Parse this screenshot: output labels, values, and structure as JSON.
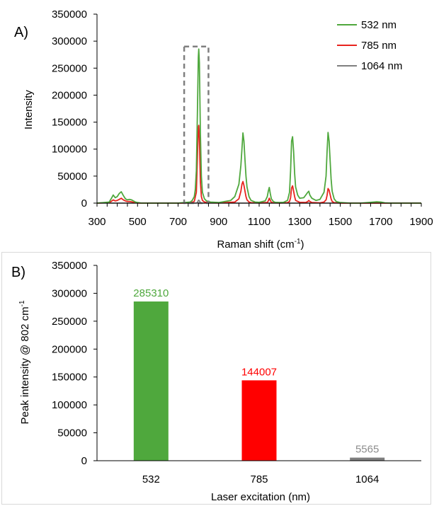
{
  "chart_data": [
    {
      "type": "line",
      "panel_label": "A)",
      "xlabel": "Raman shift (cm",
      "xlabel_sup": "-1",
      "xlabel_suffix": ")",
      "ylabel": "Intensity",
      "xlim": [
        300,
        1900
      ],
      "ylim": [
        0,
        350000
      ],
      "x_ticks": [
        300,
        500,
        700,
        900,
        1100,
        1300,
        1500,
        1700,
        1900
      ],
      "y_ticks": [
        0,
        50000,
        100000,
        150000,
        200000,
        250000,
        300000,
        350000
      ],
      "grid": false,
      "legend_position": "top-right",
      "highlight_box_x": [
        730,
        850
      ],
      "highlight_box_y": [
        0,
        290000
      ],
      "series": [
        {
          "name": "532 nm",
          "color": "#4fa83d",
          "x": [
            300,
            360,
            370,
            380,
            390,
            400,
            410,
            420,
            430,
            440,
            450,
            460,
            470,
            480,
            490,
            500,
            520,
            700,
            760,
            770,
            780,
            785,
            790,
            795,
            800,
            802,
            805,
            810,
            815,
            820,
            830,
            840,
            860,
            900,
            960,
            980,
            1000,
            1010,
            1015,
            1020,
            1025,
            1030,
            1035,
            1040,
            1050,
            1060,
            1080,
            1100,
            1130,
            1140,
            1145,
            1150,
            1155,
            1160,
            1170,
            1180,
            1200,
            1220,
            1240,
            1250,
            1255,
            1260,
            1265,
            1270,
            1275,
            1280,
            1290,
            1300,
            1320,
            1330,
            1340,
            1345,
            1350,
            1360,
            1370,
            1380,
            1400,
            1420,
            1430,
            1435,
            1440,
            1445,
            1450,
            1455,
            1460,
            1470,
            1480,
            1500,
            1550,
            1600,
            1650,
            1680,
            1700,
            1720,
            1750,
            1800,
            1900
          ],
          "y": [
            0,
            2000,
            8000,
            15000,
            10000,
            12000,
            18000,
            21000,
            14000,
            8000,
            6000,
            7000,
            6000,
            4000,
            2000,
            1000,
            0,
            0,
            2000,
            5000,
            12000,
            25000,
            60000,
            160000,
            270000,
            285310,
            260000,
            130000,
            50000,
            20000,
            8000,
            4000,
            2000,
            1000,
            5000,
            12000,
            35000,
            70000,
            100000,
            130000,
            115000,
            80000,
            50000,
            30000,
            12000,
            5000,
            2000,
            1500,
            4000,
            12000,
            22000,
            29000,
            18000,
            8000,
            3000,
            1500,
            1000,
            1500,
            5000,
            20000,
            60000,
            115000,
            123000,
            95000,
            55000,
            30000,
            15000,
            9000,
            10000,
            15000,
            20000,
            22000,
            15000,
            9000,
            7000,
            5000,
            7000,
            20000,
            50000,
            95000,
            131000,
            115000,
            80000,
            45000,
            22000,
            8000,
            3000,
            1000,
            0,
            0,
            1500,
            2500,
            2000,
            500,
            0,
            0,
            0
          ]
        },
        {
          "name": "785 nm",
          "color": "#e8231e",
          "x": [
            300,
            360,
            370,
            380,
            390,
            400,
            410,
            420,
            430,
            440,
            450,
            460,
            470,
            480,
            490,
            500,
            520,
            700,
            760,
            780,
            790,
            795,
            800,
            802,
            805,
            810,
            815,
            820,
            830,
            860,
            900,
            980,
            1000,
            1010,
            1015,
            1020,
            1025,
            1030,
            1035,
            1040,
            1050,
            1060,
            1100,
            1140,
            1145,
            1150,
            1155,
            1160,
            1170,
            1200,
            1240,
            1250,
            1255,
            1260,
            1265,
            1270,
            1275,
            1280,
            1300,
            1330,
            1340,
            1345,
            1350,
            1360,
            1400,
            1420,
            1430,
            1435,
            1440,
            1445,
            1450,
            1455,
            1460,
            1470,
            1500,
            1900
          ],
          "y": [
            0,
            1000,
            3000,
            6000,
            4000,
            5000,
            7000,
            9000,
            6000,
            4000,
            3000,
            3000,
            2500,
            1500,
            800,
            300,
            0,
            0,
            500,
            3000,
            20000,
            80000,
            140000,
            144007,
            120000,
            40000,
            12000,
            5000,
            2000,
            500,
            300,
            2000,
            8000,
            22000,
            35000,
            40000,
            33000,
            22000,
            12000,
            6000,
            2000,
            800,
            300,
            1000,
            4000,
            9000,
            5000,
            1500,
            500,
            300,
            800,
            3000,
            10000,
            28000,
            32000,
            22000,
            12000,
            5000,
            1500,
            1000,
            3000,
            5000,
            3000,
            1000,
            500,
            2000,
            6000,
            14000,
            27000,
            24000,
            16000,
            8000,
            3000,
            800,
            0,
            0
          ]
        },
        {
          "name": "1064 nm",
          "color": "#7f7f7f",
          "x": [
            300,
            790,
            795,
            800,
            802,
            805,
            810,
            815,
            1900
          ],
          "y": [
            0,
            0,
            1000,
            5000,
            5565,
            4000,
            1000,
            0,
            0
          ]
        }
      ]
    },
    {
      "type": "bar",
      "panel_label": "B)",
      "categories": [
        "532",
        "785",
        "1064"
      ],
      "values": [
        285310,
        144007,
        5565
      ],
      "value_labels": [
        "285310",
        "144007",
        "5565"
      ],
      "colors": [
        "#4fa83d",
        "#ff0000",
        "#7f7f7f"
      ],
      "label_colors": [
        "#4fa83d",
        "#ff0000",
        "#8c8c8c"
      ],
      "xlabel": "Laser excitation (nm)",
      "ylabel": "Peak intensity @ 802 cm",
      "ylabel_sup": "-1",
      "ylim": [
        0,
        350000
      ],
      "y_ticks": [
        0,
        50000,
        100000,
        150000,
        200000,
        250000,
        300000,
        350000
      ],
      "grid": false
    }
  ]
}
